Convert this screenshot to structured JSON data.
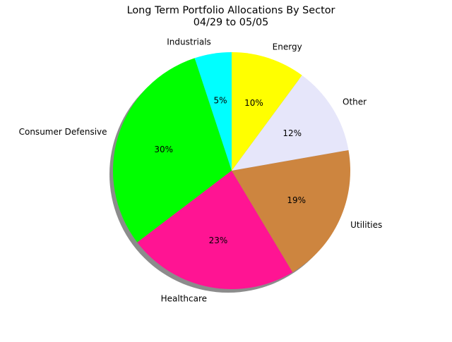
{
  "chart_data": {
    "type": "pie",
    "title_line1": "Long Term Portfolio Allocations By Sector",
    "title_line2": "04/29 to 05/05",
    "start_angle_deg": 90,
    "direction": "counterclockwise",
    "shadow": true,
    "slices": [
      {
        "label": "Industrials",
        "value": 5,
        "pct_label": "5%",
        "color": "#00ffff"
      },
      {
        "label": "Consumer Defensive",
        "value": 30,
        "pct_label": "30%",
        "color": "#00ff00"
      },
      {
        "label": "Healthcare",
        "value": 23,
        "pct_label": "23%",
        "color": "#ff1493"
      },
      {
        "label": "Utilities",
        "value": 19,
        "pct_label": "19%",
        "color": "#cd853f"
      },
      {
        "label": "Other",
        "value": 12,
        "pct_label": "12%",
        "color": "#e6e6fa"
      },
      {
        "label": "Energy",
        "value": 10,
        "pct_label": "10%",
        "color": "#ffff00"
      }
    ]
  }
}
